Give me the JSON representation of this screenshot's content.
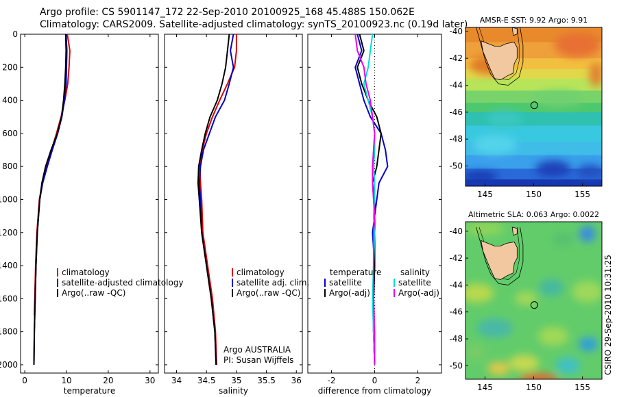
{
  "header": {
    "line1": "Argo profile: CS 5901147_172 22-Sep-2010 20100925_168 45.488S 150.062E",
    "line2": "Climatology: CARS2009. Satellite-adjusted climatology: synTS_20100923.nc (0.19d later)"
  },
  "colors": {
    "climatology": "#dd0000",
    "satellite": "#0000cc",
    "argo": "#000000",
    "salinity_satellite": "#00dddd",
    "salinity_argo": "#ee00ee"
  },
  "chart_data": [
    {
      "type": "line",
      "title": "",
      "xlabel": "temperature",
      "ylabel": "",
      "xlim": [
        -1,
        32
      ],
      "ylim": [
        2050,
        0
      ],
      "x_ticks": [
        "0",
        "10",
        "20",
        "30"
      ],
      "y_ticks": [
        "0",
        "200",
        "400",
        "600",
        "800",
        "1000",
        "1200",
        "1400",
        "1600",
        "1800",
        "2000"
      ],
      "legend": [
        "climatology",
        "satellite-adjusted climatology",
        "Argo(..raw -QC)"
      ],
      "series": [
        {
          "name": "climatology",
          "color": "#dd0000",
          "x": [
            10.2,
            10.8,
            10.6,
            10.3,
            9.6,
            8.7,
            7.6,
            6.4,
            5.2,
            4.2,
            3.5,
            2.9,
            2.6,
            2.4,
            2.3
          ],
          "depth": [
            0,
            100,
            200,
            300,
            400,
            500,
            600,
            700,
            800,
            900,
            1000,
            1200,
            1400,
            1600,
            1700
          ]
        },
        {
          "name": "satellite-adjusted climatology",
          "color": "#0000cc",
          "x": [
            9.9,
            10.1,
            10.0,
            9.9,
            9.5,
            8.9,
            7.9,
            6.6,
            5.4,
            4.3,
            3.6,
            3.0,
            2.7,
            2.5,
            2.3,
            2.2
          ],
          "depth": [
            0,
            100,
            200,
            300,
            400,
            500,
            600,
            700,
            800,
            900,
            1000,
            1200,
            1400,
            1600,
            1800,
            2000
          ]
        },
        {
          "name": "Argo(..raw -QC)",
          "color": "#000000",
          "x": [
            9.8,
            9.9,
            9.8,
            9.6,
            9.3,
            8.8,
            7.8,
            6.3,
            5.0,
            4.1,
            3.6,
            3.0,
            2.7,
            2.5,
            2.3,
            2.2
          ],
          "depth": [
            0,
            100,
            200,
            300,
            400,
            500,
            600,
            700,
            800,
            900,
            1000,
            1200,
            1400,
            1600,
            1800,
            2000
          ]
        }
      ]
    },
    {
      "type": "line",
      "title": "",
      "xlabel": "salinity",
      "ylabel": "",
      "xlim": [
        33.8,
        36.1
      ],
      "ylim": [
        2050,
        0
      ],
      "x_ticks": [
        "34",
        "34.5",
        "35",
        "35.5",
        "36"
      ],
      "legend": [
        "climatology",
        "satellite adj. clim.",
        "Argo(..raw -QC)"
      ],
      "annotation": [
        "Argo AUSTRALIA",
        "PI: Susan Wijffels"
      ],
      "series": [
        {
          "name": "climatology",
          "color": "#dd0000",
          "x": [
            35.0,
            35.0,
            34.97,
            34.85,
            34.72,
            34.6,
            34.5,
            34.43,
            34.39,
            34.4,
            34.42,
            34.44,
            34.52,
            34.6,
            34.65,
            34.67
          ],
          "depth": [
            0,
            100,
            200,
            300,
            400,
            500,
            600,
            700,
            800,
            900,
            1000,
            1200,
            1400,
            1600,
            1800,
            2000
          ]
        },
        {
          "name": "satellite adj. clim.",
          "color": "#0000cc",
          "x": [
            34.95,
            34.9,
            34.95,
            34.88,
            34.8,
            34.65,
            34.55,
            34.45,
            34.4,
            34.38,
            34.4,
            34.42,
            34.5,
            34.58,
            34.64,
            34.66
          ],
          "depth": [
            0,
            100,
            200,
            300,
            400,
            500,
            600,
            700,
            800,
            900,
            1000,
            1200,
            1400,
            1600,
            1800,
            2000
          ]
        },
        {
          "name": "Argo(..raw -QC)",
          "color": "#000000",
          "x": [
            34.88,
            34.85,
            34.82,
            34.76,
            34.68,
            34.56,
            34.48,
            34.42,
            34.37,
            34.36,
            34.38,
            34.42,
            34.5,
            34.58,
            34.64,
            34.66
          ],
          "depth": [
            0,
            100,
            200,
            300,
            400,
            500,
            600,
            700,
            800,
            900,
            1000,
            1200,
            1400,
            1600,
            1800,
            2000
          ]
        }
      ]
    },
    {
      "type": "line",
      "title": "",
      "xlabel": "difference from climatology",
      "ylabel": "",
      "xlim": [
        -3.1,
        3.1
      ],
      "ylim": [
        2050,
        0
      ],
      "x_ticks": [
        "-2",
        "0",
        "2"
      ],
      "legend_groups": [
        {
          "heading": "temperature",
          "items": [
            "satellite",
            "Argo(-adj)"
          ]
        },
        {
          "heading": "salinity",
          "items": [
            "satellite",
            "Argo(-adj)"
          ]
        }
      ],
      "series": [
        {
          "name": "temperature satellite",
          "color": "#0000cc",
          "x": [
            -0.8,
            -0.6,
            -0.9,
            -0.7,
            -0.5,
            -0.2,
            0.3,
            0.5,
            0.6,
            0.2,
            0.1,
            0.0,
            -0.1,
            0.0,
            -0.05,
            -0.05,
            0.0
          ],
          "depth": [
            0,
            100,
            200,
            300,
            400,
            500,
            600,
            700,
            800,
            900,
            1000,
            1100,
            1200,
            1400,
            1600,
            1800,
            2000
          ]
        },
        {
          "name": "temperature Argo(-adj)",
          "color": "#000000",
          "x": [
            -0.7,
            -0.5,
            -0.8,
            -0.6,
            -0.3,
            0.1,
            0.3,
            0.2,
            0.1,
            -0.1,
            0.0,
            0.0,
            0.0,
            0.0,
            -0.05,
            -0.05,
            0.0
          ],
          "depth": [
            0,
            100,
            200,
            300,
            400,
            500,
            600,
            700,
            800,
            900,
            1000,
            1100,
            1200,
            1400,
            1600,
            1800,
            2000
          ]
        },
        {
          "name": "salinity satellite",
          "color": "#00dddd",
          "x": [
            -0.1,
            -0.2,
            -0.3,
            -0.5,
            -0.3,
            -0.1,
            0.0,
            0.0,
            -0.05,
            0.0,
            0.0,
            -0.05,
            0.0,
            -0.05,
            -0.1,
            -0.05,
            0.0
          ],
          "depth": [
            0,
            100,
            200,
            300,
            400,
            500,
            600,
            700,
            800,
            900,
            1000,
            1100,
            1200,
            1400,
            1600,
            1800,
            2000
          ]
        },
        {
          "name": "salinity Argo(-adj)",
          "color": "#ee00ee",
          "x": [
            -0.9,
            -0.8,
            -0.5,
            -0.4,
            -0.2,
            -0.1,
            0.0,
            -0.05,
            -0.1,
            -0.1,
            -0.05,
            0.0,
            -0.05,
            -0.05,
            -0.05,
            0.0,
            0.0
          ],
          "depth": [
            0,
            100,
            200,
            300,
            400,
            500,
            600,
            700,
            800,
            900,
            1000,
            1100,
            1200,
            1400,
            1600,
            1800,
            2000
          ]
        }
      ]
    },
    {
      "type": "heatmap",
      "title": "AMSR-E SST: 9.92 Argo: 9.91",
      "xlim": [
        143,
        157
      ],
      "ylim": [
        -51.5,
        -39.7
      ],
      "x_ticks": [
        "145",
        "150",
        "155"
      ],
      "y_ticks": [
        "-40",
        "-42",
        "-44",
        "-46",
        "-48",
        "-50"
      ],
      "float_position": {
        "lon": 150.062,
        "lat": -45.488
      }
    },
    {
      "type": "heatmap",
      "title": "Altimetric SLA: 0.063 Argo: 0.0022",
      "xlim": [
        143,
        157
      ],
      "ylim": [
        -51.0,
        -39.3
      ],
      "x_ticks": [
        "145",
        "150",
        "155"
      ],
      "y_ticks": [
        "-40",
        "-42",
        "-44",
        "-46",
        "-48",
        "-50"
      ],
      "float_position": {
        "lon": 150.062,
        "lat": -45.488
      }
    }
  ],
  "footer": {
    "stamp": "CSIRO 29-Sep-2010 10:31:25"
  }
}
